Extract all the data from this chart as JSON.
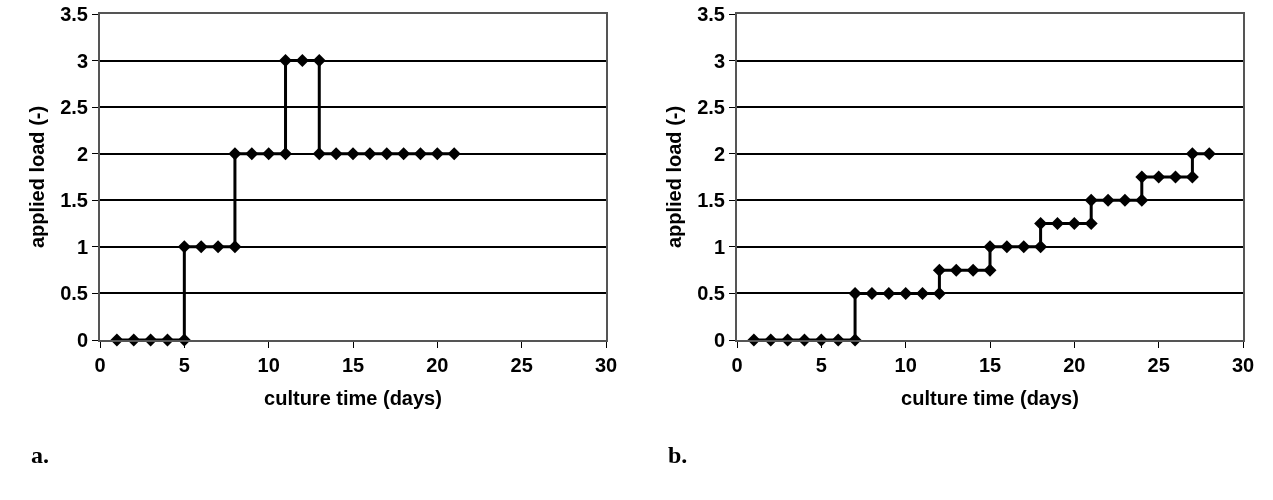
{
  "chart_data": [
    {
      "type": "line",
      "xlabel": "culture time (days)",
      "ylabel": "applied load (-)",
      "annotations": [
        "a."
      ],
      "color": "#000000",
      "marker": "diamond",
      "line_style": "solid",
      "grid": "y",
      "xlim": [
        0,
        30
      ],
      "xticks": [
        0,
        5,
        10,
        15,
        20,
        25,
        30
      ],
      "ylim": [
        0,
        3.5
      ],
      "yticks": [
        0,
        0.5,
        1,
        1.5,
        2,
        2.5,
        3,
        3.5
      ],
      "x": [
        1,
        2,
        3,
        4,
        5,
        5,
        6,
        7,
        8,
        8,
        9,
        10,
        11,
        11,
        12,
        13,
        13,
        14,
        15,
        16,
        17,
        18,
        19,
        20,
        21
      ],
      "values": [
        0,
        0,
        0,
        0,
        0,
        1,
        1,
        1,
        1,
        2,
        2,
        2,
        2,
        3,
        3,
        3,
        2,
        2,
        2,
        2,
        2,
        2,
        2,
        2,
        2
      ]
    },
    {
      "type": "line",
      "xlabel": "culture time (days)",
      "ylabel": "applied load (-)",
      "annotations": [
        "b."
      ],
      "color": "#000000",
      "marker": "diamond",
      "line_style": "solid",
      "grid": "y",
      "xlim": [
        0,
        30
      ],
      "xticks": [
        0,
        5,
        10,
        15,
        20,
        25,
        30
      ],
      "ylim": [
        0,
        3.5
      ],
      "yticks": [
        0,
        0.5,
        1,
        1.5,
        2,
        2.5,
        3,
        3.5
      ],
      "x": [
        1,
        2,
        3,
        4,
        5,
        6,
        7,
        7,
        8,
        9,
        10,
        11,
        12,
        12,
        13,
        14,
        15,
        15,
        16,
        17,
        18,
        18,
        19,
        20,
        21,
        21,
        22,
        23,
        24,
        24,
        25,
        26,
        27,
        27,
        28
      ],
      "values": [
        0,
        0,
        0,
        0,
        0,
        0,
        0,
        0.5,
        0.5,
        0.5,
        0.5,
        0.5,
        0.5,
        0.75,
        0.75,
        0.75,
        0.75,
        1,
        1,
        1,
        1,
        1.25,
        1.25,
        1.25,
        1.25,
        1.5,
        1.5,
        1.5,
        1.5,
        1.75,
        1.75,
        1.75,
        1.75,
        2,
        2
      ]
    }
  ]
}
